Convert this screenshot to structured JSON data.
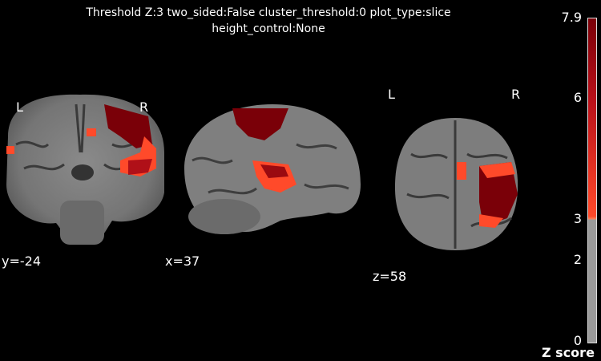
{
  "title": {
    "line1": "Threshold Z:3  two_sided:False  cluster_threshold:0  plot_type:slice",
    "line2": "height_control:None"
  },
  "views": {
    "coronal": {
      "coord": "y=-24",
      "left_label": "L",
      "right_label": "R"
    },
    "sagittal": {
      "coord": "x=37"
    },
    "axial": {
      "coord": "z=58",
      "left_label": "L",
      "right_label": "R"
    }
  },
  "colorbar": {
    "title": "Z score",
    "ticks": [
      "7.9",
      "6",
      "3",
      "2",
      "0"
    ],
    "min": 0,
    "max": 7.9,
    "threshold": 3,
    "colors": {
      "low": "#9a9a9a",
      "mid": "#ff4a2a",
      "high": "#7a0008"
    }
  }
}
